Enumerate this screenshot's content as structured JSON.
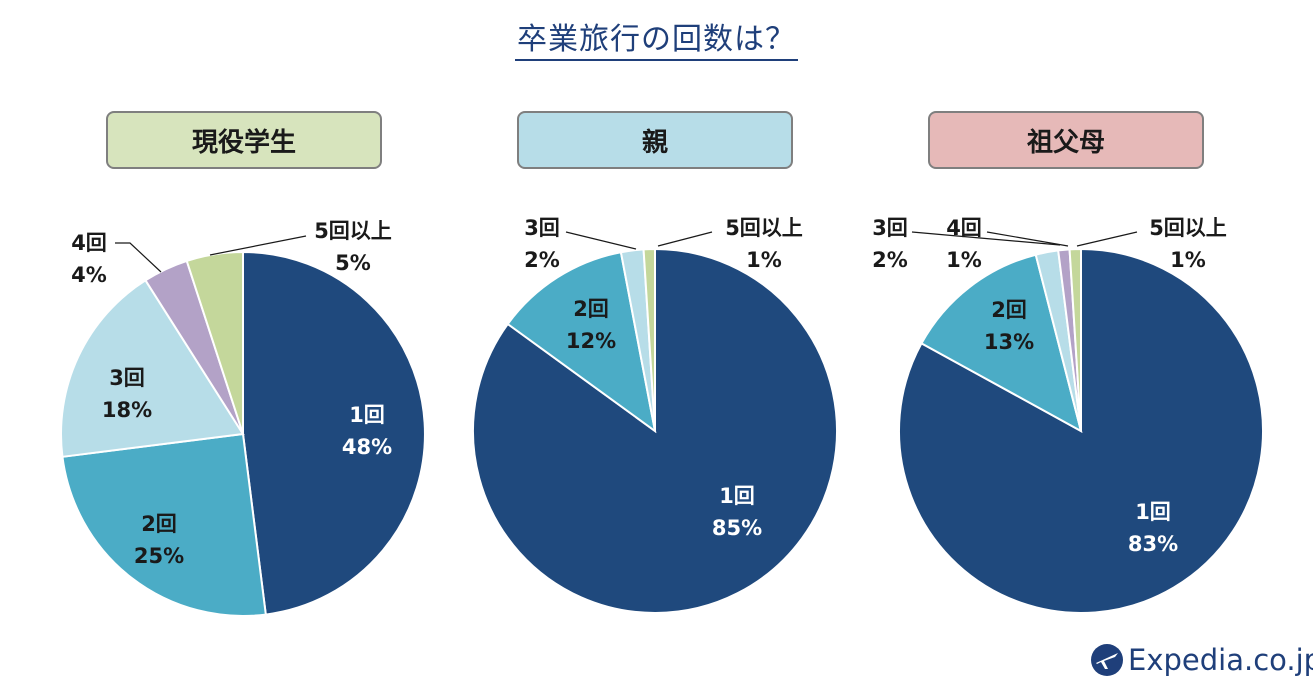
{
  "title": "卒業旅行の回数は？",
  "brand": "Expedia.co.jp",
  "colors": {
    "1回": "#1f497d",
    "2回": "#4bacc6",
    "3回": "#b7dde8",
    "4回": "#b3a2c7",
    "5回以上": "#c4d79b"
  },
  "chart_data": [
    {
      "type": "pie",
      "title": "現役学生",
      "title_bg": "#d7e4bd",
      "categories": [
        "1回",
        "2回",
        "3回",
        "4回",
        "5回以上"
      ],
      "values": [
        48,
        25,
        18,
        4,
        5
      ],
      "labels": [
        "48%",
        "25%",
        "18%",
        "4%",
        "5%"
      ]
    },
    {
      "type": "pie",
      "title": "親",
      "title_bg": "#b7dde8",
      "categories": [
        "1回",
        "2回",
        "3回",
        "5回以上"
      ],
      "values": [
        85,
        12,
        2,
        1
      ],
      "labels": [
        "85%",
        "12%",
        "2%",
        "1%"
      ]
    },
    {
      "type": "pie",
      "title": "祖父母",
      "title_bg": "#e6b9b8",
      "categories": [
        "1回",
        "2回",
        "3回",
        "4回",
        "5回以上"
      ],
      "values": [
        83,
        13,
        2,
        1,
        1
      ],
      "labels": [
        "83%",
        "13%",
        "2%",
        "1%",
        "1%"
      ]
    }
  ]
}
